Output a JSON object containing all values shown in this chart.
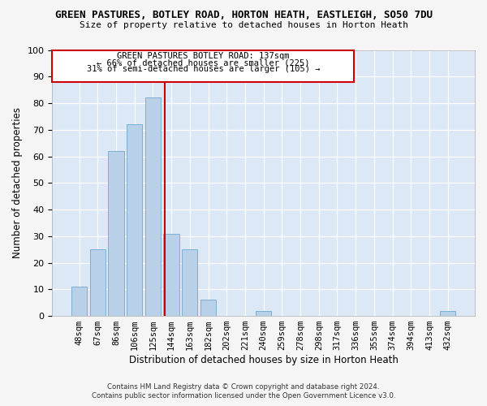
{
  "title": "GREEN PASTURES, BOTLEY ROAD, HORTON HEATH, EASTLEIGH, SO50 7DU",
  "subtitle": "Size of property relative to detached houses in Horton Heath",
  "xlabel": "Distribution of detached houses by size in Horton Heath",
  "ylabel": "Number of detached properties",
  "footer_line1": "Contains HM Land Registry data © Crown copyright and database right 2024.",
  "footer_line2": "Contains public sector information licensed under the Open Government Licence v3.0.",
  "categories": [
    "48sqm",
    "67sqm",
    "86sqm",
    "106sqm",
    "125sqm",
    "144sqm",
    "163sqm",
    "182sqm",
    "202sqm",
    "221sqm",
    "240sqm",
    "259sqm",
    "278sqm",
    "298sqm",
    "317sqm",
    "336sqm",
    "355sqm",
    "374sqm",
    "394sqm",
    "413sqm",
    "432sqm"
  ],
  "values": [
    11,
    25,
    62,
    72,
    82,
    31,
    25,
    6,
    0,
    0,
    2,
    0,
    0,
    0,
    0,
    0,
    0,
    0,
    0,
    0,
    2
  ],
  "bar_color": "#b8d0e8",
  "bar_edge_color": "#7aafd4",
  "vline_color": "#cc0000",
  "annotation_title": "GREEN PASTURES BOTLEY ROAD: 137sqm",
  "annotation_line1": "← 66% of detached houses are smaller (225)",
  "annotation_line2": "31% of semi-detached houses are larger (105) →",
  "annotation_box_color": "#cc0000",
  "ylim": [
    0,
    100
  ],
  "yticks": [
    0,
    10,
    20,
    30,
    40,
    50,
    60,
    70,
    80,
    90,
    100
  ],
  "fig_bg_color": "#f5f5f5",
  "plot_bg_color": "#dce8f5"
}
